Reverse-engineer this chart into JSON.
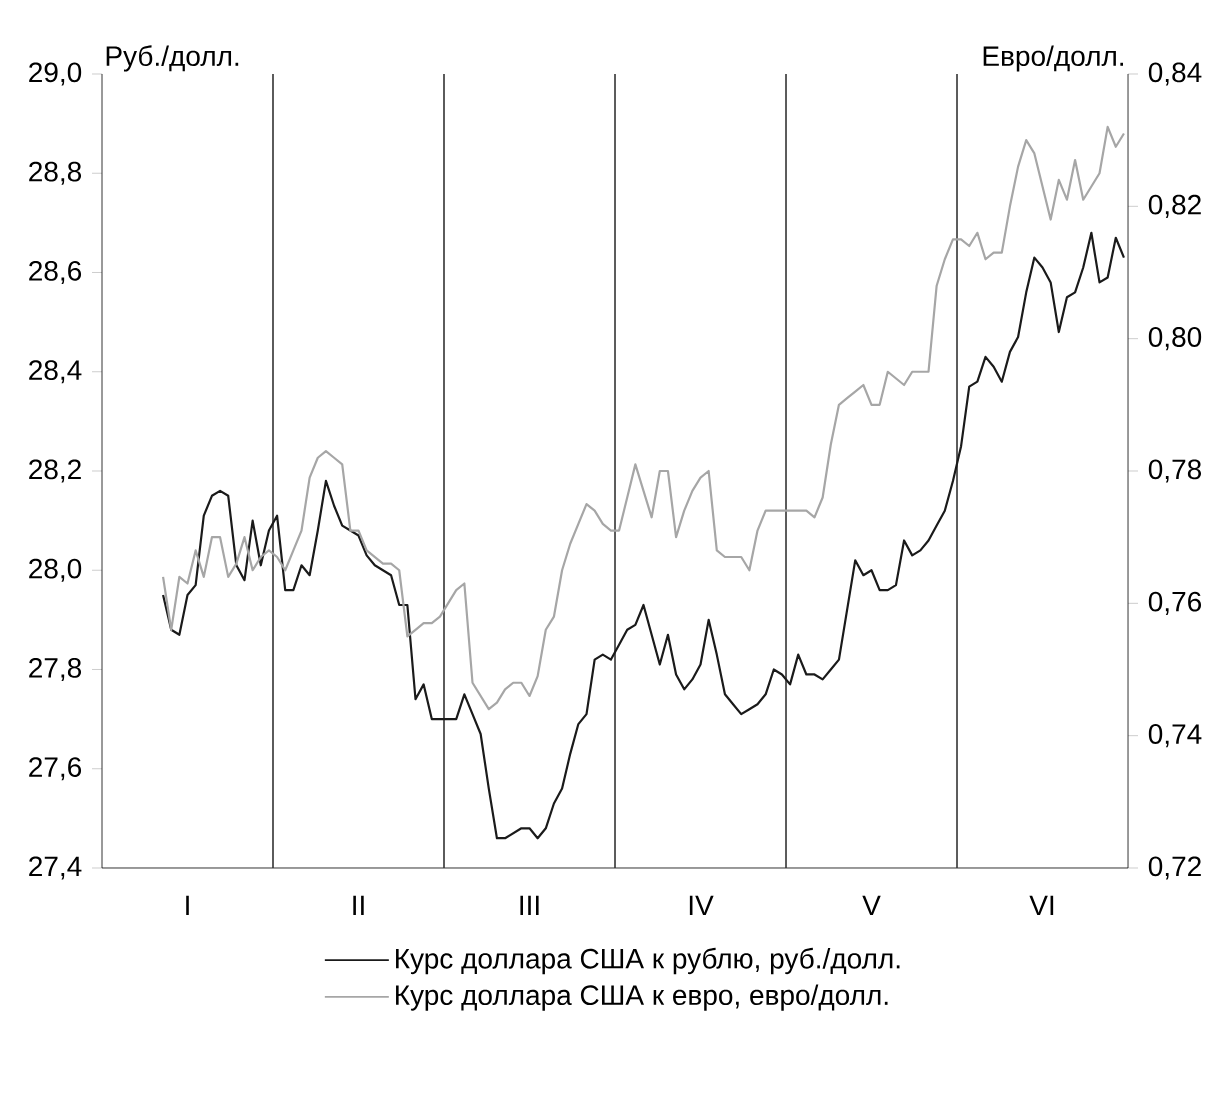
{
  "chart_data": {
    "type": "line",
    "ylabel": "Руб./долл.",
    "y2label": "Евро/долл.",
    "categories": [
      null,
      null,
      null,
      null,
      null,
      null,
      null,
      null,
      null,
      null,
      "I",
      null,
      null,
      null,
      null,
      null,
      null,
      null,
      null,
      null,
      null,
      null,
      null,
      null,
      null,
      null,
      null,
      null,
      null,
      null,
      null,
      "II",
      null,
      null,
      null,
      null,
      null,
      null,
      null,
      null,
      null,
      null,
      null,
      null,
      null,
      null,
      null,
      null,
      null,
      null,
      null,
      null,
      "III",
      null,
      null,
      null,
      null,
      null,
      null,
      null,
      null,
      null,
      null,
      null,
      null,
      null,
      null,
      null,
      null,
      null,
      null,
      null,
      null,
      "IV",
      null,
      null,
      null,
      null,
      null,
      null,
      null,
      null,
      null,
      null,
      null,
      null,
      null,
      null,
      null,
      null,
      null,
      null,
      null,
      null,
      "V",
      null,
      null,
      null,
      null,
      null,
      null,
      null,
      null,
      null,
      null,
      null,
      null,
      null,
      null,
      null,
      null,
      null,
      null,
      null,
      null,
      "VI",
      null,
      null,
      null,
      null,
      null,
      null,
      null,
      null,
      null,
      null
    ],
    "ylim": [
      27.4,
      29.0
    ],
    "yticks": [
      {
        "value": 27.4,
        "label": "27,4"
      },
      {
        "value": 27.6,
        "label": "27,6"
      },
      {
        "value": 27.8,
        "label": "27,8"
      },
      {
        "value": 28.0,
        "label": "28,0"
      },
      {
        "value": 28.2,
        "label": "28,2"
      },
      {
        "value": 28.4,
        "label": "28,4"
      },
      {
        "value": 28.6,
        "label": "28,6"
      },
      {
        "value": 28.8,
        "label": "28,8"
      },
      {
        "value": 29.0,
        "label": "29,0"
      }
    ],
    "y2lim": [
      0.72,
      0.84
    ],
    "y2ticks": [
      {
        "value": 0.72,
        "label": "0,72"
      },
      {
        "value": 0.74,
        "label": "0,74"
      },
      {
        "value": 0.76,
        "label": "0,76"
      },
      {
        "value": 0.78,
        "label": "0,78"
      },
      {
        "value": 0.8,
        "label": "0,80"
      },
      {
        "value": 0.82,
        "label": "0,82"
      },
      {
        "value": 0.84,
        "label": "0,84"
      }
    ],
    "legend": "bottom",
    "series": [
      {
        "name": "Курс доллара США к рублю, руб./долл.",
        "color": "#1a1a1a",
        "values": [
          null,
          null,
          null,
          null,
          null,
          null,
          null,
          27.95,
          27.88,
          27.87,
          27.95,
          27.97,
          28.11,
          28.15,
          28.16,
          28.15,
          28.01,
          27.98,
          28.1,
          28.01,
          28.08,
          28.11,
          27.96,
          27.96,
          28.01,
          27.99,
          28.08,
          28.18,
          28.13,
          28.09,
          28.08,
          28.07,
          28.03,
          28.01,
          28.0,
          27.99,
          27.93,
          27.93,
          27.74,
          27.77,
          27.7,
          27.7,
          27.7,
          27.7,
          27.75,
          27.71,
          27.67,
          27.56,
          27.46,
          27.46,
          27.47,
          27.48,
          27.48,
          27.46,
          27.48,
          27.53,
          27.56,
          27.63,
          27.69,
          27.71,
          27.82,
          27.83,
          27.82,
          27.85,
          27.88,
          27.89,
          27.93,
          27.87,
          27.81,
          27.87,
          27.79,
          27.76,
          27.78,
          27.81,
          27.9,
          27.83,
          27.75,
          27.73,
          27.71,
          27.72,
          27.73,
          27.75,
          27.8,
          27.79,
          27.77,
          27.83,
          27.79,
          27.79,
          27.78,
          27.8,
          27.82,
          27.92,
          28.02,
          27.99,
          28.0,
          27.96,
          27.96,
          27.97,
          28.06,
          28.03,
          28.04,
          28.06,
          28.09,
          28.12,
          28.18,
          28.25,
          28.37,
          28.38,
          28.43,
          28.41,
          28.38,
          28.44,
          28.47,
          28.56,
          28.63,
          28.61,
          28.58,
          28.48,
          28.55,
          28.56,
          28.61,
          28.68,
          28.58,
          28.59,
          28.67,
          28.63
        ]
      },
      {
        "name": "Курс доллара США к евро, евро/долл.",
        "color": "#a6a6a6",
        "axis": "y2",
        "values": [
          null,
          null,
          null,
          null,
          null,
          null,
          null,
          0.764,
          0.756,
          0.764,
          0.763,
          0.768,
          0.764,
          0.77,
          0.77,
          0.764,
          0.766,
          0.77,
          0.765,
          0.767,
          0.768,
          0.767,
          0.765,
          0.768,
          0.771,
          0.779,
          0.782,
          0.783,
          0.782,
          0.781,
          0.771,
          0.771,
          0.768,
          0.767,
          0.766,
          0.766,
          0.765,
          0.755,
          0.756,
          0.757,
          0.757,
          0.758,
          0.76,
          0.762,
          0.763,
          0.748,
          0.746,
          0.744,
          0.745,
          0.747,
          0.748,
          0.748,
          0.746,
          0.749,
          0.756,
          0.758,
          0.765,
          0.769,
          0.772,
          0.775,
          0.774,
          0.772,
          0.771,
          0.771,
          0.776,
          0.781,
          0.777,
          0.773,
          0.78,
          0.78,
          0.77,
          0.774,
          0.777,
          0.779,
          0.78,
          0.768,
          0.767,
          0.767,
          0.767,
          0.765,
          0.771,
          0.774,
          0.774,
          0.774,
          0.774,
          0.774,
          0.774,
          0.773,
          0.776,
          0.784,
          0.79,
          0.791,
          0.792,
          0.793,
          0.79,
          0.79,
          0.795,
          0.794,
          0.793,
          0.795,
          0.795,
          0.795,
          0.808,
          0.812,
          0.815,
          0.815,
          0.814,
          0.816,
          0.812,
          0.813,
          0.813,
          0.82,
          0.826,
          0.83,
          0.828,
          0.823,
          0.818,
          0.824,
          0.821,
          0.827,
          0.821,
          0.823,
          0.825,
          0.832,
          0.829,
          0.831
        ]
      }
    ]
  }
}
